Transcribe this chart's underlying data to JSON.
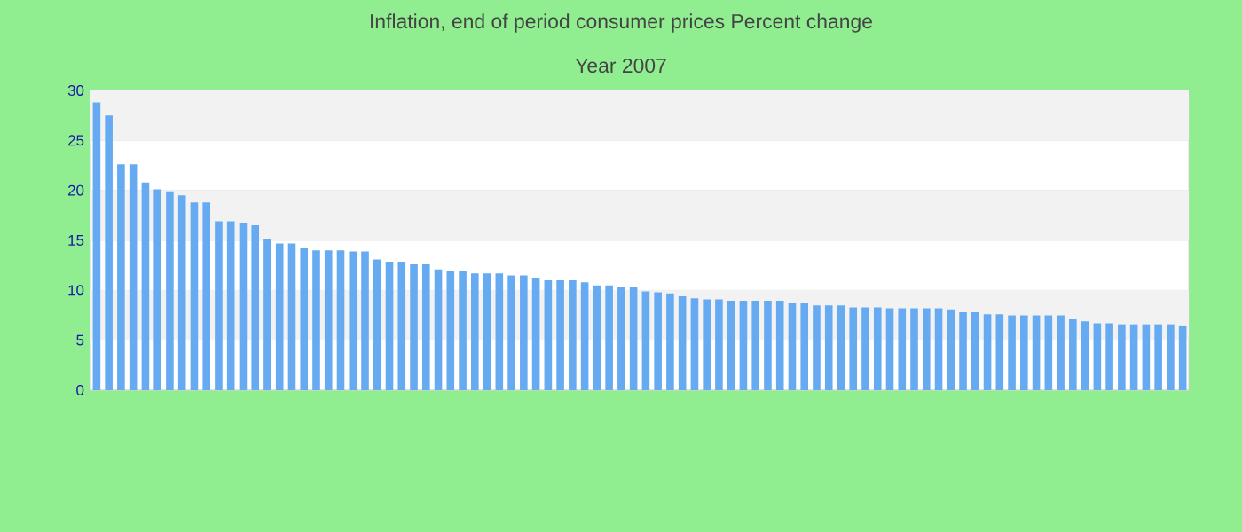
{
  "chart_data": {
    "type": "bar",
    "title": "Inflation, end of period consumer prices  Percent change",
    "subtitle": "Year 2007",
    "categories": [
      null,
      null,
      null,
      null,
      null,
      null,
      null,
      null,
      null,
      null,
      null,
      null,
      null,
      null,
      null,
      null,
      null,
      null,
      null,
      null,
      null,
      null,
      null,
      null,
      null,
      null,
      null,
      null,
      null,
      null,
      null,
      null,
      null,
      null,
      null,
      null,
      null,
      null,
      null,
      null,
      null,
      null,
      null,
      null,
      null,
      null,
      null,
      null,
      null,
      null,
      null,
      null,
      null,
      null,
      null,
      null,
      null,
      null,
      null,
      null,
      null,
      null,
      null,
      null,
      null,
      null,
      null,
      null,
      null,
      null,
      null,
      null,
      null,
      null,
      null,
      null,
      null,
      null,
      null,
      null,
      null,
      null,
      null,
      null,
      null,
      null,
      null,
      null,
      null,
      null
    ],
    "values": [
      28.8,
      27.5,
      22.6,
      22.6,
      20.8,
      20.1,
      19.9,
      19.5,
      18.8,
      18.8,
      16.9,
      16.9,
      16.7,
      16.5,
      15.1,
      14.7,
      14.7,
      14.2,
      14.0,
      14.0,
      14.0,
      13.9,
      13.9,
      13.1,
      12.8,
      12.8,
      12.6,
      12.6,
      12.1,
      11.9,
      11.9,
      11.7,
      11.7,
      11.7,
      11.5,
      11.5,
      11.2,
      11.0,
      11.0,
      11.0,
      10.8,
      10.5,
      10.5,
      10.3,
      10.3,
      9.9,
      9.8,
      9.6,
      9.4,
      9.2,
      9.1,
      9.1,
      8.9,
      8.9,
      8.9,
      8.9,
      8.9,
      8.7,
      8.7,
      8.5,
      8.5,
      8.5,
      8.3,
      8.3,
      8.3,
      8.2,
      8.2,
      8.2,
      8.2,
      8.2,
      8.0,
      7.8,
      7.8,
      7.6,
      7.6,
      7.5,
      7.5,
      7.5,
      7.5,
      7.5,
      7.1,
      6.9,
      6.7,
      6.7,
      6.6,
      6.6,
      6.6,
      6.6,
      6.6,
      6.4
    ],
    "color": "#66aaf2",
    "ylim": [
      0,
      30
    ],
    "yticks": [
      0,
      5,
      10,
      15,
      20,
      25,
      30
    ],
    "grid": "y"
  }
}
